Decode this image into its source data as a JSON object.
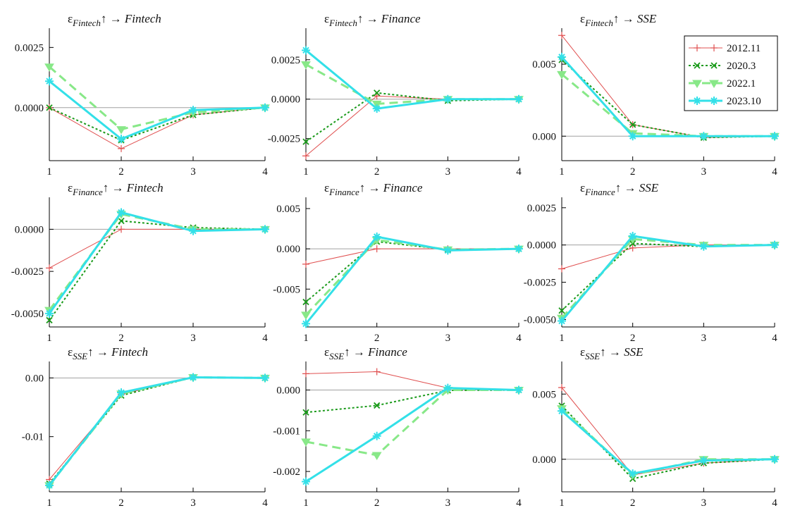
{
  "figure": {
    "background": "#ffffff",
    "axis_color": "#000000",
    "zero_line_color": "#a0a0a0"
  },
  "series_styles": [
    {
      "name": "2012.11",
      "color": "#e05050",
      "dash": "none",
      "width": 1,
      "marker": "plus"
    },
    {
      "name": "2020.3",
      "color": "#1a9a1a",
      "dash": "3,3",
      "width": 2,
      "marker": "x"
    },
    {
      "name": "2022.1",
      "color": "#88e888",
      "dash": "12,7",
      "width": 3,
      "marker": "triangle-down"
    },
    {
      "name": "2023.10",
      "color": "#33e0e8",
      "dash": "none",
      "width": 3,
      "marker": "star"
    }
  ],
  "legend": {
    "placement": "top-right of top-right panel",
    "entries": [
      "2012.11",
      "2020.3",
      "2022.1",
      "2023.10"
    ]
  },
  "chart_data": [
    {
      "type": "line",
      "title": {
        "eps": "ε",
        "sub": "Fintech",
        "arrow": "↑ → ",
        "target": "Fintech"
      },
      "x": [
        1,
        2,
        3,
        4
      ],
      "xticks": [
        "1",
        "2",
        "3",
        "4"
      ],
      "ylim": [
        -0.0022,
        0.0033
      ],
      "yticks": [
        0.0,
        0.0025
      ],
      "yticklabels": [
        "0.0000",
        "0.0025"
      ],
      "series": [
        {
          "name": "2012.11",
          "values": [
            0.0,
            -0.0017,
            -0.0003,
            0.0
          ]
        },
        {
          "name": "2020.3",
          "values": [
            0.0,
            -0.00135,
            -0.0003,
            0.0
          ]
        },
        {
          "name": "2022.1",
          "values": [
            0.0017,
            -0.0009,
            -0.0002,
            0.0
          ]
        },
        {
          "name": "2023.10",
          "values": [
            0.0011,
            -0.0013,
            -0.0001,
            0.0
          ]
        }
      ]
    },
    {
      "type": "line",
      "title": {
        "eps": "ε",
        "sub": "Fintech",
        "arrow": "↑ → ",
        "target": "Finance"
      },
      "x": [
        1,
        2,
        3,
        4
      ],
      "xticks": [
        "1",
        "2",
        "3",
        "4"
      ],
      "ylim": [
        -0.0039,
        0.0045
      ],
      "yticks": [
        -0.0025,
        0.0,
        0.0025
      ],
      "yticklabels": [
        "-0.0025",
        "0.0000",
        "0.0025"
      ],
      "series": [
        {
          "name": "2012.11",
          "values": [
            -0.0036,
            0.0002,
            0.0,
            0.0
          ]
        },
        {
          "name": "2020.3",
          "values": [
            -0.0027,
            0.0004,
            -0.0001,
            0.0
          ]
        },
        {
          "name": "2022.1",
          "values": [
            0.0022,
            -0.0003,
            0.0,
            0.0
          ]
        },
        {
          "name": "2023.10",
          "values": [
            0.0031,
            -0.0006,
            0.0,
            0.0
          ]
        }
      ]
    },
    {
      "type": "line",
      "title": {
        "eps": "ε",
        "sub": "Fintech",
        "arrow": "↑ → ",
        "target": "SSE"
      },
      "x": [
        1,
        2,
        3,
        4
      ],
      "xticks": [
        "1",
        "2",
        "3",
        "4"
      ],
      "ylim": [
        -0.0017,
        0.0075
      ],
      "yticks": [
        0.0,
        0.005
      ],
      "yticklabels": [
        "0.000",
        "0.005"
      ],
      "series": [
        {
          "name": "2012.11",
          "values": [
            0.007,
            0.0008,
            -0.0001,
            0.0
          ]
        },
        {
          "name": "2020.3",
          "values": [
            0.0053,
            0.0008,
            -0.0001,
            0.0
          ]
        },
        {
          "name": "2022.1",
          "values": [
            0.0043,
            0.0002,
            0.0,
            0.0
          ]
        },
        {
          "name": "2023.10",
          "values": [
            0.0055,
            0.0,
            0.0,
            0.0
          ]
        }
      ]
    },
    {
      "type": "line",
      "title": {
        "eps": "ε",
        "sub": "Finance",
        "arrow": "↑ → ",
        "target": "Fintech"
      },
      "x": [
        1,
        2,
        3,
        4
      ],
      "xticks": [
        "1",
        "2",
        "3",
        "4"
      ],
      "ylim": [
        -0.0058,
        0.0019
      ],
      "yticks": [
        -0.005,
        -0.0025,
        0.0
      ],
      "yticklabels": [
        "-0.0050",
        "-0.0025",
        "0.0000"
      ],
      "series": [
        {
          "name": "2012.11",
          "values": [
            -0.0023,
            0.0,
            0.0,
            0.0
          ]
        },
        {
          "name": "2020.3",
          "values": [
            -0.0054,
            0.0005,
            0.0001,
            0.0
          ]
        },
        {
          "name": "2022.1",
          "values": [
            -0.0048,
            0.0009,
            0.0,
            0.0
          ]
        },
        {
          "name": "2023.10",
          "values": [
            -0.005,
            0.001,
            -0.0001,
            0.0
          ]
        }
      ]
    },
    {
      "type": "line",
      "title": {
        "eps": "ε",
        "sub": "Finance",
        "arrow": "↑ → ",
        "target": "Finance"
      },
      "x": [
        1,
        2,
        3,
        4
      ],
      "xticks": [
        "1",
        "2",
        "3",
        "4"
      ],
      "ylim": [
        -0.0097,
        0.0064
      ],
      "yticks": [
        -0.005,
        0.0,
        0.005
      ],
      "yticklabels": [
        "-0.005",
        "0.000",
        "0.005"
      ],
      "series": [
        {
          "name": "2012.11",
          "values": [
            -0.0019,
            0.0,
            0.0,
            0.0
          ]
        },
        {
          "name": "2020.3",
          "values": [
            -0.0066,
            0.0009,
            -0.0001,
            0.0
          ]
        },
        {
          "name": "2022.1",
          "values": [
            -0.0082,
            0.0011,
            -0.0001,
            0.0
          ]
        },
        {
          "name": "2023.10",
          "values": [
            -0.0093,
            0.0015,
            -0.0002,
            0.0
          ]
        }
      ]
    },
    {
      "type": "line",
      "title": {
        "eps": "ε",
        "sub": "Finance",
        "arrow": "↑ → ",
        "target": "SSE"
      },
      "x": [
        1,
        2,
        3,
        4
      ],
      "xticks": [
        "1",
        "2",
        "3",
        "4"
      ],
      "ylim": [
        -0.0055,
        0.0032
      ],
      "yticks": [
        -0.005,
        -0.0025,
        0.0,
        0.0025
      ],
      "yticklabels": [
        "-0.0050",
        "-0.0025",
        "0.0000",
        "0.0025"
      ],
      "series": [
        {
          "name": "2012.11",
          "values": [
            -0.0016,
            -0.0002,
            0.0,
            0.0
          ]
        },
        {
          "name": "2020.3",
          "values": [
            -0.0044,
            0.0001,
            -0.0001,
            0.0
          ]
        },
        {
          "name": "2022.1",
          "values": [
            -0.0049,
            0.0004,
            0.0,
            0.0
          ]
        },
        {
          "name": "2023.10",
          "values": [
            -0.0051,
            0.0006,
            -0.0001,
            0.0
          ]
        }
      ]
    },
    {
      "type": "line",
      "title": {
        "eps": "ε",
        "sub": "SSE",
        "arrow": "↑ → ",
        "target": "Fintech"
      },
      "x": [
        1,
        2,
        3,
        4
      ],
      "xticks": [
        "1",
        "2",
        "3",
        "4"
      ],
      "ylim": [
        -0.0194,
        0.0028
      ],
      "yticks": [
        -0.01,
        0.0
      ],
      "yticklabels": [
        "-0.01",
        "0.00"
      ],
      "series": [
        {
          "name": "2012.11",
          "values": [
            -0.0173,
            -0.0028,
            0.0001,
            0.0
          ]
        },
        {
          "name": "2020.3",
          "values": [
            -0.018,
            -0.003,
            0.0001,
            0.0
          ]
        },
        {
          "name": "2022.1",
          "values": [
            -0.0183,
            -0.0027,
            0.0001,
            0.0
          ]
        },
        {
          "name": "2023.10",
          "values": [
            -0.0183,
            -0.0025,
            0.0001,
            0.0
          ]
        }
      ]
    },
    {
      "type": "line",
      "title": {
        "eps": "ε",
        "sub": "SSE",
        "arrow": "↑ → ",
        "target": "Finance"
      },
      "x": [
        1,
        2,
        3,
        4
      ],
      "xticks": [
        "1",
        "2",
        "3",
        "4"
      ],
      "ylim": [
        -0.0025,
        0.0007
      ],
      "yticks": [
        -0.002,
        -0.001,
        0.0
      ],
      "yticklabels": [
        "-0.002",
        "-0.001",
        "0.000"
      ],
      "series": [
        {
          "name": "2012.11",
          "values": [
            0.0004,
            0.00045,
            5e-05,
            0.0
          ]
        },
        {
          "name": "2020.3",
          "values": [
            -0.00055,
            -0.00038,
            -1e-05,
            0.0
          ]
        },
        {
          "name": "2022.1",
          "values": [
            -0.00127,
            -0.0016,
            0.0,
            0.0
          ]
        },
        {
          "name": "2023.10",
          "values": [
            -0.00225,
            -0.00113,
            5e-05,
            0.0
          ]
        }
      ]
    },
    {
      "type": "line",
      "title": {
        "eps": "ε",
        "sub": "SSE",
        "arrow": "↑ → ",
        "target": "SSE"
      },
      "x": [
        1,
        2,
        3,
        4
      ],
      "xticks": [
        "1",
        "2",
        "3",
        "4"
      ],
      "ylim": [
        -0.0025,
        0.0075
      ],
      "yticks": [
        0.0,
        0.005
      ],
      "yticklabels": [
        "0.000",
        "0.005"
      ],
      "series": [
        {
          "name": "2012.11",
          "values": [
            0.0055,
            -0.0012,
            -0.0003,
            0.0
          ]
        },
        {
          "name": "2020.3",
          "values": [
            0.0041,
            -0.0015,
            -0.0003,
            0.0
          ]
        },
        {
          "name": "2022.1",
          "values": [
            0.0039,
            -0.0012,
            0.0,
            0.0
          ]
        },
        {
          "name": "2023.10",
          "values": [
            0.0037,
            -0.0011,
            -0.0001,
            0.0
          ]
        }
      ]
    }
  ]
}
